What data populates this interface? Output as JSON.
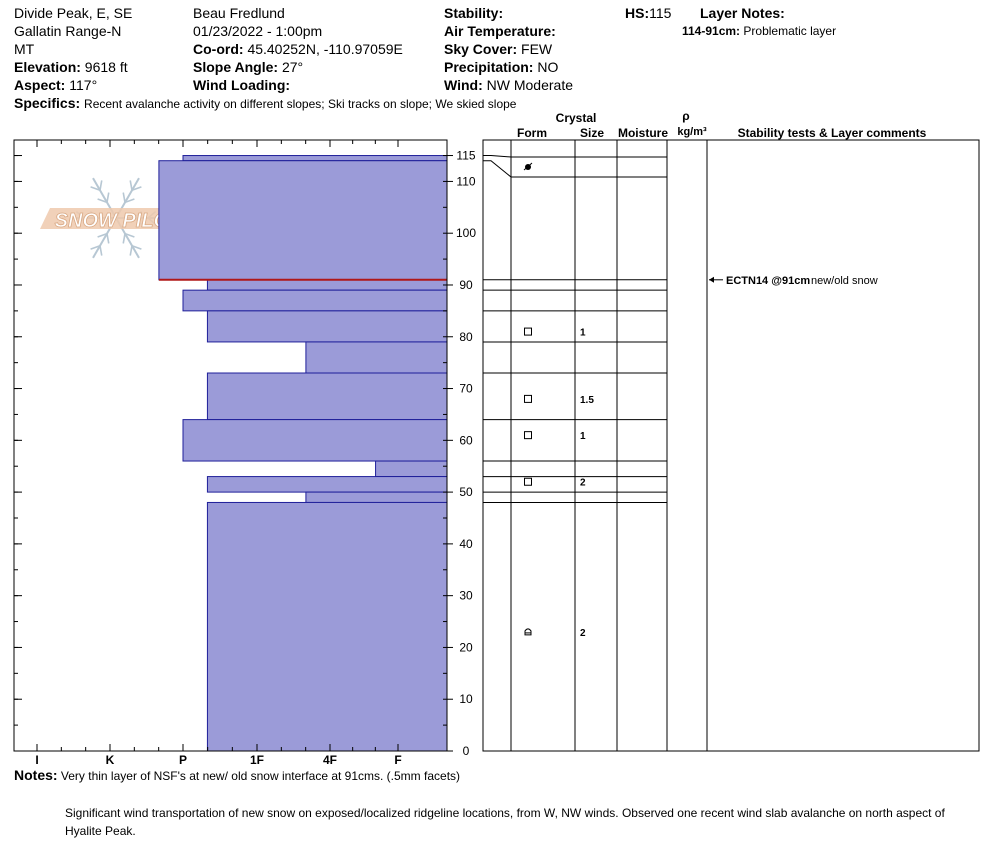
{
  "header": {
    "location": "Divide Peak, E, SE",
    "range": "Gallatin Range-N",
    "state": "MT",
    "elevation_label": "Elevation:",
    "elevation_value": "9618 ft",
    "aspect_label": "Aspect:",
    "aspect_value": "117°",
    "observer": "Beau  Fredlund",
    "datetime": "01/23/2022 - 1:00pm",
    "coord_label": "Co-ord:",
    "coord_value": "45.40252N, -110.97059E",
    "slope_label": "Slope Angle:",
    "slope_value": "27°",
    "wind_loading_label": "Wind Loading:",
    "stability_label": "Stability:",
    "air_temp_label": "Air Temperature:",
    "sky_label": "Sky Cover:",
    "sky_value": "FEW",
    "precip_label": "Precipitation:",
    "precip_value": "NO",
    "wind_label": "Wind:",
    "wind_value": "NW Moderate",
    "hs_label": "HS:",
    "hs_value": "115",
    "layer_notes_label": "Layer Notes:",
    "layer_note_range": "114-91cm:",
    "layer_note_text": "Problematic layer",
    "specifics_label": "Specifics:",
    "specifics_value": "Recent avalanche activity on different slopes;  Ski tracks on slope;  We skied slope"
  },
  "logo_text": "SNOW PILOT",
  "column_headers": {
    "crystal": "Crystal",
    "form": "Form",
    "size": "Size",
    "moisture": "Moisture",
    "rho": "ρ",
    "density": "kg/m³",
    "stability": "Stability tests & Layer comments"
  },
  "chart_data": {
    "type": "bar",
    "orientation": "horizontal",
    "y_range": [
      0,
      118
    ],
    "y_ticks": [
      0,
      10,
      20,
      30,
      40,
      50,
      60,
      70,
      80,
      90,
      100,
      110,
      115
    ],
    "hardness_scale": [
      {
        "label": "I",
        "value": 0
      },
      {
        "label": "K",
        "value": 1
      },
      {
        "label": "P",
        "value": 2
      },
      {
        "label": "1F",
        "value": 3
      },
      {
        "label": "4F",
        "value": 4
      },
      {
        "label": "F",
        "value": 5
      }
    ],
    "hardness_axis_max": 5.65,
    "layers": [
      {
        "bottom": 114,
        "top": 115,
        "hardness": 2.0
      },
      {
        "bottom": 91,
        "top": 114,
        "hardness": 1.67
      },
      {
        "bottom": 89,
        "top": 91,
        "hardness": 2.33
      },
      {
        "bottom": 85,
        "top": 89,
        "hardness": 2.0
      },
      {
        "bottom": 79,
        "top": 85,
        "hardness": 2.33
      },
      {
        "bottom": 73,
        "top": 79,
        "hardness": 3.67
      },
      {
        "bottom": 64,
        "top": 73,
        "hardness": 2.33
      },
      {
        "bottom": 56,
        "top": 64,
        "hardness": 2.0
      },
      {
        "bottom": 53,
        "top": 56,
        "hardness": 4.67
      },
      {
        "bottom": 50,
        "top": 53,
        "hardness": 2.33
      },
      {
        "bottom": 48,
        "top": 50,
        "hardness": 3.67
      },
      {
        "bottom": 0,
        "top": 48,
        "hardness": 2.33
      }
    ],
    "weak_layer_height": 91,
    "crystal_rows": [
      {
        "height": 113,
        "form": "dot",
        "size": ""
      },
      {
        "height": 81,
        "form": "square",
        "size": "1"
      },
      {
        "height": 68,
        "form": "square",
        "size": "1.5"
      },
      {
        "height": 61,
        "form": "square",
        "size": "1"
      },
      {
        "height": 52,
        "form": "square",
        "size": "2"
      },
      {
        "height": 23,
        "form": "cup",
        "size": "2"
      }
    ],
    "stability_tests": [
      {
        "height": 91,
        "test": "ECTN14 @91cm",
        "comment": "new/old snow"
      }
    ]
  },
  "notes": {
    "label": "Notes:",
    "line1": "Very thin layer of NSF's at new/ old snow interface at 91cms.  (.5mm facets)",
    "line2": "Significant wind transportation of new snow on exposed/localized ridgeline locations, from W, NW winds.  Observed one recent wind slab avalanche on north aspect of Hyalite Peak."
  }
}
